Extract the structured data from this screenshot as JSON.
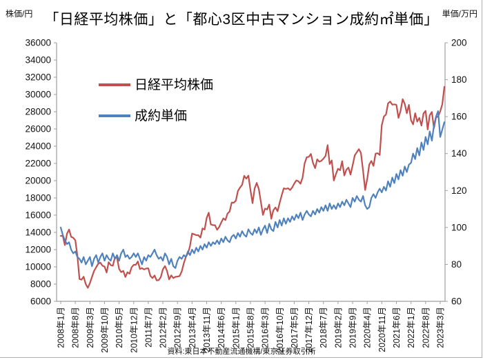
{
  "header": {
    "title": "「日経平均株価」と「都心3区中古マンション成約㎡単価」",
    "left_axis_unit": "株価/円",
    "right_axis_unit": "単価/万円"
  },
  "legend": {
    "items": [
      {
        "label": "日経平均株価",
        "color": "#C0504D"
      },
      {
        "label": "成約単価",
        "color": "#4F81BD"
      }
    ]
  },
  "footer": {
    "source": "資料:東日本不動産流通機構/東京証券取引所"
  },
  "chart_data": {
    "type": "line",
    "title": "「日経平均株価」と「都心3区中古マンション成約㎡単価」",
    "grid": false,
    "legend_position": "inside-top-left",
    "axis_color": "#9e9e9e",
    "x_start": "2008-01",
    "x_end": "2023-05",
    "x_interval": "monthly",
    "x_tick_every_n_months": 7,
    "x_tick_labels": [
      "2008年1月",
      "2008年8月",
      "2009年3月",
      "2009年10月",
      "2010年5月",
      "2010年12月",
      "2011年7月",
      "2012年2月",
      "2012年9月",
      "2013年4月",
      "2013年11月",
      "2014年6月",
      "2015年1月",
      "2015年8月",
      "2016年3月",
      "2016年10月",
      "2017年5月",
      "2017年12月",
      "2018年7月",
      "2019年2月",
      "2019年9月",
      "2020年4月",
      "2020年11月",
      "2021年6月",
      "2022年1月",
      "2022年8月",
      "2023年3月"
    ],
    "left_axis": {
      "label": "株価/円",
      "min": 6000,
      "max": 36000,
      "step": 2000
    },
    "right_axis": {
      "label": "単価/万円",
      "min": 60,
      "max": 200,
      "step": 20
    },
    "series": [
      {
        "name": "日経平均株価",
        "name_key": "nikkei-average-line",
        "axis": "left",
        "color": "#C0504D",
        "values": [
          13592,
          13603,
          12526,
          13850,
          14339,
          13481,
          13377,
          13073,
          11260,
          8577,
          8512,
          8860,
          7994,
          7568,
          8110,
          8828,
          9523,
          9958,
          10357,
          10493,
          10133,
          10035,
          9346,
          10546,
          10198,
          10126,
          11090,
          11057,
          9769,
          9383,
          9537,
          8824,
          9369,
          9202,
          9937,
          10229,
          10238,
          10624,
          9755,
          9850,
          9694,
          9816,
          9833,
          8955,
          8700,
          8988,
          8435,
          8455,
          8803,
          9723,
          10084,
          9521,
          8543,
          9007,
          8695,
          8840,
          8870,
          8928,
          9446,
          10395,
          11139,
          11559,
          12398,
          13861,
          13775,
          13677,
          13668,
          13389,
          14456,
          14328,
          15662,
          16291,
          14915,
          14841,
          14828,
          14304,
          14632,
          15162,
          15621,
          15425,
          16174,
          16414,
          17460,
          17451,
          17674,
          18798,
          19207,
          19520,
          20563,
          20236,
          20585,
          18890,
          17388,
          19083,
          19747,
          19034,
          17518,
          16027,
          16759,
          16666,
          17235,
          15576,
          16569,
          16887,
          16450,
          17425,
          18308,
          19114,
          19041,
          19119,
          18909,
          19197,
          19651,
          20033,
          19925,
          19646,
          20356,
          22012,
          22725,
          22765,
          23098,
          22068,
          21454,
          22468,
          22202,
          22305,
          22554,
          22865,
          24120,
          21920,
          22351,
          20015,
          20773,
          21385,
          21206,
          22259,
          20601,
          21276,
          21522,
          20704,
          21756,
          22927,
          23294,
          23657,
          23205,
          21143,
          18917,
          20194,
          21878,
          22288,
          21710,
          23140,
          23185,
          22977,
          26434,
          27444,
          27663,
          28966,
          29179,
          28813,
          28860,
          28792,
          27284,
          28090,
          29453,
          28893,
          27822,
          28792,
          27002,
          26527,
          27821,
          26848,
          27280,
          26393,
          27802,
          28092,
          25937,
          27587,
          27969,
          26095,
          27327,
          27446,
          28041,
          28856,
          30888
        ]
      },
      {
        "name": "成約単価",
        "name_key": "contract-unit-price-line",
        "axis": "right",
        "color": "#4F81BD",
        "values": [
          100,
          96,
          93,
          91,
          92,
          88,
          86,
          87,
          84,
          83,
          81,
          84,
          80,
          82,
          84,
          79,
          83,
          85,
          81,
          84,
          86,
          82,
          85,
          83,
          82,
          86,
          83,
          85,
          82,
          86,
          88,
          84,
          85,
          83,
          84,
          86,
          84,
          86,
          83,
          80,
          84,
          82,
          85,
          84,
          86,
          88,
          85,
          83,
          84,
          82,
          86,
          84,
          80,
          83,
          79,
          78,
          82,
          84,
          83,
          85,
          84,
          87,
          85,
          88,
          86,
          89,
          87,
          90,
          88,
          91,
          89,
          92,
          90,
          92,
          91,
          93,
          91,
          94,
          92,
          95,
          93,
          92,
          95,
          96,
          94,
          97,
          95,
          98,
          96,
          95,
          99,
          97,
          96,
          99,
          97,
          100,
          96,
          99,
          101,
          97,
          102,
          99,
          98,
          103,
          100,
          104,
          101,
          105,
          102,
          105,
          103,
          106,
          104,
          107,
          105,
          108,
          104,
          107,
          109,
          107,
          106,
          109,
          107,
          110,
          108,
          111,
          109,
          112,
          109,
          113,
          110,
          112,
          110,
          113,
          111,
          114,
          112,
          115,
          113,
          111,
          116,
          114,
          117,
          115,
          114,
          117,
          112,
          110,
          111,
          116,
          118,
          116,
          119,
          121,
          119,
          122,
          120,
          125,
          122,
          127,
          124,
          129,
          126,
          131,
          128,
          133,
          130,
          134,
          135,
          140,
          137,
          143,
          139,
          146,
          142,
          149,
          145,
          152,
          147,
          155,
          160,
          163,
          149,
          153,
          157
        ]
      }
    ]
  }
}
